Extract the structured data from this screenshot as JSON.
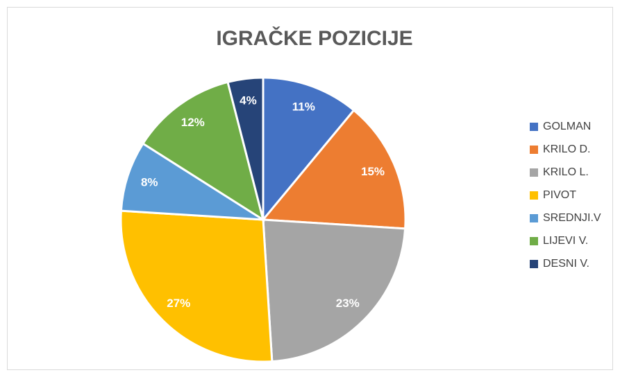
{
  "chart_data": {
    "type": "pie",
    "title": "IGRAČKE POZICIJE",
    "categories": [
      "GOLMAN",
      "KRILO D.",
      "KRILO L.",
      "PIVOT",
      "SREDNJI.V",
      "LIJEVI V.",
      "DESNI V."
    ],
    "values": [
      11,
      15,
      23,
      27,
      8,
      12,
      4
    ],
    "value_labels": [
      "11%",
      "15%",
      "23%",
      "27%",
      "8%",
      "12%",
      "4%"
    ],
    "colors": [
      "#4472c4",
      "#ed7d31",
      "#a5a5a5",
      "#ffc000",
      "#5b9bd5",
      "#70ad47",
      "#264478"
    ],
    "legend": "right"
  }
}
